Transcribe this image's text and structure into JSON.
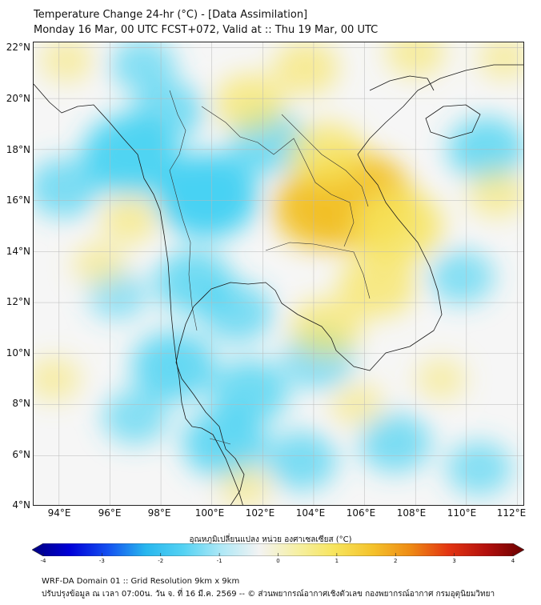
{
  "header": {
    "title_line1": "Temperature Change 24-hr (°C) - [Data Assimilation]",
    "title_line2": "Monday 16 Mar, 00 UTC FCST+072, Valid at :: Thu 19 Mar, 00 UTC"
  },
  "map": {
    "lat_labels": [
      "22°N",
      "20°N",
      "18°N",
      "16°N",
      "14°N",
      "12°N",
      "10°N",
      "8°N",
      "6°N",
      "4°N"
    ],
    "lon_labels": [
      "94°E",
      "96°E",
      "98°E",
      "100°E",
      "102°E",
      "104°E",
      "106°E",
      "108°E",
      "110°E",
      "112°E"
    ],
    "extent": {
      "lon_min": 93,
      "lon_max": 112.3,
      "lat_min": 4,
      "lat_max": 22.2
    },
    "colors": {
      "cool": "#3fd0f2",
      "neutral": "#f6f6f6",
      "warm": "#f7e45c",
      "hot": "#f2c025"
    },
    "anomalies": [
      {
        "lon": 99.8,
        "lat": 16.2,
        "value": -1.1
      },
      {
        "lon": 96.8,
        "lat": 17.8,
        "value": -1.0
      },
      {
        "lon": 98.3,
        "lat": 19.5,
        "value": -0.6
      },
      {
        "lon": 102.2,
        "lat": 18.3,
        "value": -0.7
      },
      {
        "lon": 94.2,
        "lat": 16.5,
        "value": -0.6
      },
      {
        "lon": 97.3,
        "lat": 21.3,
        "value": -0.5
      },
      {
        "lon": 99.3,
        "lat": 12.8,
        "value": -0.7
      },
      {
        "lon": 101.0,
        "lat": 11.6,
        "value": -0.6
      },
      {
        "lon": 98.5,
        "lat": 9.5,
        "value": -0.8
      },
      {
        "lon": 101.5,
        "lat": 8.5,
        "value": -0.7
      },
      {
        "lon": 100.5,
        "lat": 6.5,
        "value": -0.8
      },
      {
        "lon": 104.2,
        "lat": 9.8,
        "value": -0.6
      },
      {
        "lon": 97.0,
        "lat": 7.5,
        "value": -0.5
      },
      {
        "lon": 96.3,
        "lat": 12.3,
        "value": -0.4
      },
      {
        "lon": 103.5,
        "lat": 5.8,
        "value": -0.6
      },
      {
        "lon": 110.8,
        "lat": 18.0,
        "value": -0.7
      },
      {
        "lon": 109.8,
        "lat": 13.0,
        "value": -0.5
      },
      {
        "lon": 107.2,
        "lat": 6.5,
        "value": -0.6
      },
      {
        "lon": 110.5,
        "lat": 5.5,
        "value": -0.5
      },
      {
        "lon": 105.6,
        "lat": 16.0,
        "value": 1.35
      },
      {
        "lon": 104.3,
        "lat": 15.7,
        "value": 1.0
      },
      {
        "lon": 107.3,
        "lat": 15.0,
        "value": 0.9
      },
      {
        "lon": 104.5,
        "lat": 17.8,
        "value": 0.7
      },
      {
        "lon": 106.5,
        "lat": 12.7,
        "value": 0.7
      },
      {
        "lon": 104.5,
        "lat": 11.0,
        "value": 0.6
      },
      {
        "lon": 101.5,
        "lat": 19.8,
        "value": 0.6
      },
      {
        "lon": 103.7,
        "lat": 21.2,
        "value": 0.5
      },
      {
        "lon": 108.0,
        "lat": 21.8,
        "value": 0.4
      },
      {
        "lon": 96.8,
        "lat": 15.3,
        "value": 0.4
      },
      {
        "lon": 95.6,
        "lat": 13.5,
        "value": 0.3
      },
      {
        "lon": 111.2,
        "lat": 16.3,
        "value": 0.4
      },
      {
        "lon": 111.5,
        "lat": 21.6,
        "value": 0.3
      },
      {
        "lon": 94.3,
        "lat": 21.5,
        "value": 0.3
      },
      {
        "lon": 93.8,
        "lat": 9.0,
        "value": 0.3
      },
      {
        "lon": 101.3,
        "lat": 4.8,
        "value": 0.3
      },
      {
        "lon": 105.7,
        "lat": 8.0,
        "value": 0.3
      },
      {
        "lon": 109.0,
        "lat": 9.0,
        "value": 0.25
      }
    ]
  },
  "colorbar": {
    "title": "อุณหภูมิเปลี่ยนแปลง หน่วย องศาเซลเซียส (°C)",
    "ticks": [
      "-4",
      "-3",
      "-2",
      "-1",
      "0",
      "1",
      "2",
      "3",
      "4"
    ],
    "min": -4,
    "max": 4,
    "stops": [
      "#000080",
      "#0000d8",
      "#1450f0",
      "#27b6ee",
      "#54d2f3",
      "#aee8f6",
      "#f3f3f3",
      "#f6f0a4",
      "#f7e45c",
      "#f4c22b",
      "#ee8a14",
      "#e33512",
      "#b3100d",
      "#6a0000"
    ]
  },
  "footer": {
    "line1": "WRF-DA Domain 01 :: Grid Resolution 9km x 9km",
    "line2": "ปรับปรุงข้อมูล ณ เวลา 07:00น. วัน จ. ที่ 16 มี.ค. 2569 -- © ส่วนพยากรณ์อากาศเชิงตัวเลข กองพยากรณ์อากาศ กรมอุตุนิยมวิทยา"
  }
}
